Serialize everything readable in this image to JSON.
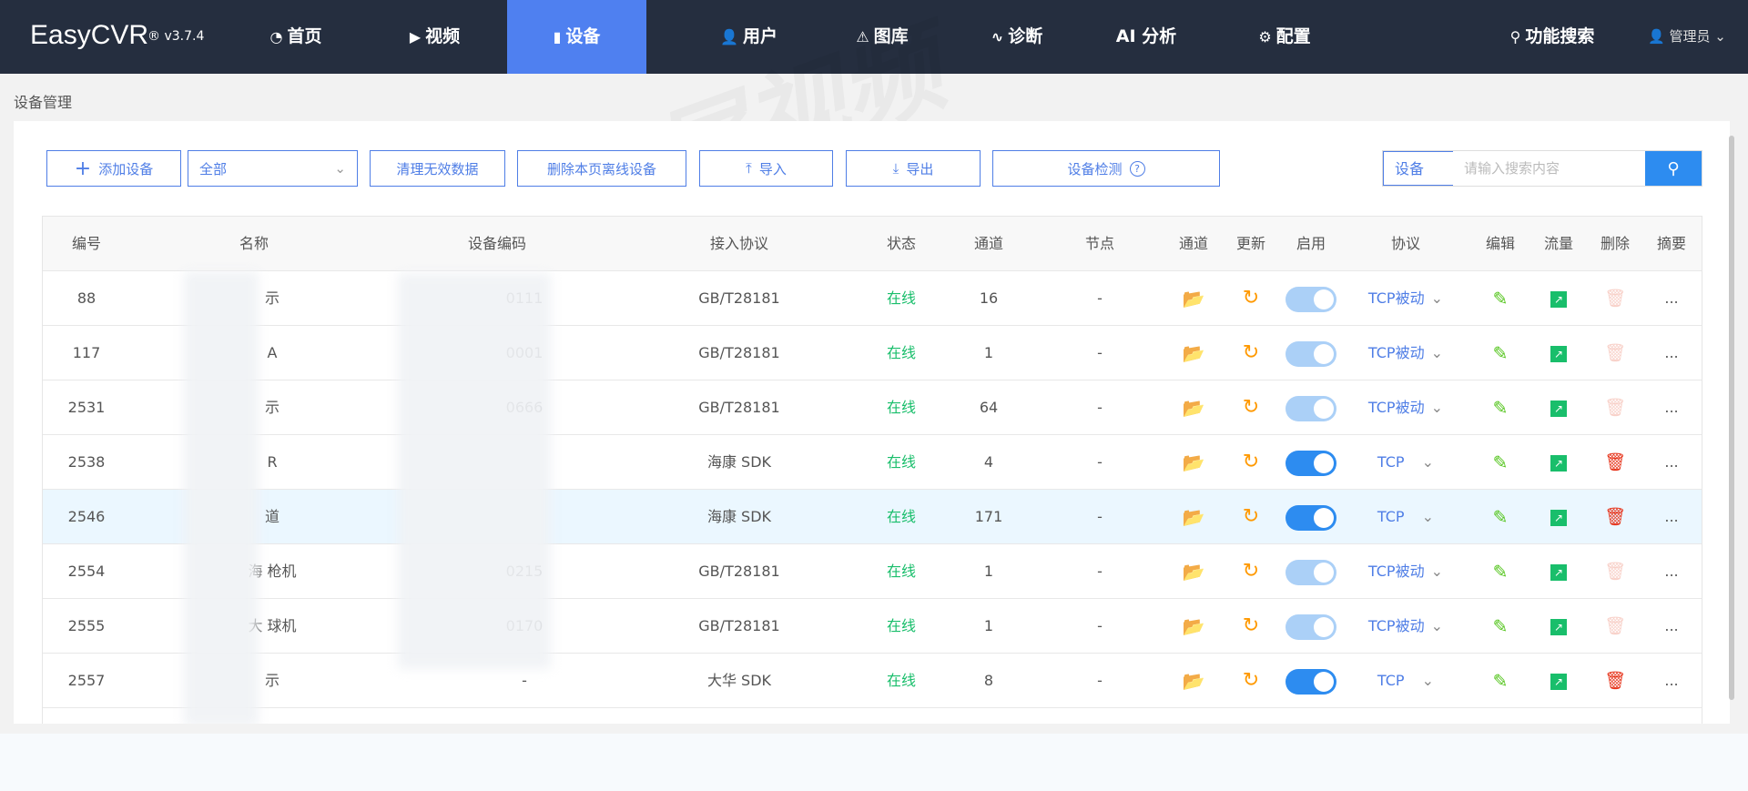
{
  "app": {
    "logo": "EasyCVR",
    "version": "® v3.7.4"
  },
  "nav": {
    "items": [
      {
        "label": "首页",
        "icon": "dashboard-icon",
        "glyph": "◔"
      },
      {
        "label": "视频",
        "icon": "play-icon",
        "glyph": "▶"
      },
      {
        "label": "设备",
        "icon": "device-icon",
        "glyph": "▮"
      },
      {
        "label": "用户",
        "icon": "user-icon",
        "glyph": "👤"
      },
      {
        "label": "图库",
        "icon": "alarm-icon",
        "glyph": "⚠"
      },
      {
        "label": "诊断",
        "icon": "pulse-icon",
        "glyph": "∿"
      },
      {
        "label": "AI 分析",
        "icon": "",
        "glyph": ""
      },
      {
        "label": "配置",
        "icon": "gear-icon",
        "glyph": "⚙"
      }
    ],
    "active": "设备",
    "search": "功能搜索",
    "user": "管理员"
  },
  "breadcrumb": "设备管理",
  "toolbar": {
    "add": "添加设备",
    "filter": "全部",
    "clean": "清理无效数据",
    "delete_offline": "删除本页离线设备",
    "import": "导入",
    "export": "导出",
    "detect": "设备检测",
    "search_label": "设备",
    "search_placeholder": "请输入搜索内容"
  },
  "table": {
    "headers": [
      "编号",
      "名称",
      "设备编码",
      "接入协议",
      "状态",
      "通道",
      "节点",
      "通道",
      "更新",
      "启用",
      "协议",
      "编辑",
      "流量",
      "删除",
      "摘要"
    ],
    "rows": [
      {
        "id": "88",
        "name": "示",
        "code": "0111",
        "access": "GB/T28181",
        "status": "在线",
        "channels": "16",
        "node": "-",
        "enabled": false,
        "protocol": "TCP被动",
        "deletable": false
      },
      {
        "id": "117",
        "name": "A",
        "code": "0001",
        "access": "GB/T28181",
        "status": "在线",
        "channels": "1",
        "node": "-",
        "enabled": false,
        "protocol": "TCP被动",
        "deletable": false
      },
      {
        "id": "2531",
        "name": "示",
        "code": "0666",
        "access": "GB/T28181",
        "status": "在线",
        "channels": "64",
        "node": "-",
        "enabled": false,
        "protocol": "TCP被动",
        "deletable": false
      },
      {
        "id": "2538",
        "name": "R",
        "code": "",
        "access": "海康 SDK",
        "status": "在线",
        "channels": "4",
        "node": "-",
        "enabled": true,
        "protocol": "TCP",
        "deletable": true
      },
      {
        "id": "2546",
        "name": "道",
        "code": "",
        "access": "海康 SDK",
        "status": "在线",
        "channels": "171",
        "node": "-",
        "enabled": true,
        "protocol": "TCP",
        "deletable": true
      },
      {
        "id": "2554",
        "name": "海 枪机",
        "code": "0215",
        "access": "GB/T28181",
        "status": "在线",
        "channels": "1",
        "node": "-",
        "enabled": false,
        "protocol": "TCP被动",
        "deletable": false
      },
      {
        "id": "2555",
        "name": "大 球机",
        "code": "0170",
        "access": "GB/T28181",
        "status": "在线",
        "channels": "1",
        "node": "-",
        "enabled": false,
        "protocol": "TCP被动",
        "deletable": false
      },
      {
        "id": "2557",
        "name": "示",
        "code": "-",
        "access": "大华 SDK",
        "status": "在线",
        "channels": "8",
        "node": "-",
        "enabled": true,
        "protocol": "TCP",
        "deletable": true
      }
    ],
    "summary": "..."
  },
  "colors": {
    "nav_bg": "#252e3f",
    "accent": "#4f80f0",
    "online": "#19be6b",
    "toggle_on": "#2d8cf0",
    "toggle_off": "#abd0f7",
    "delete": "#e6331a"
  },
  "watermark": "TSINGSEE青犀视频"
}
